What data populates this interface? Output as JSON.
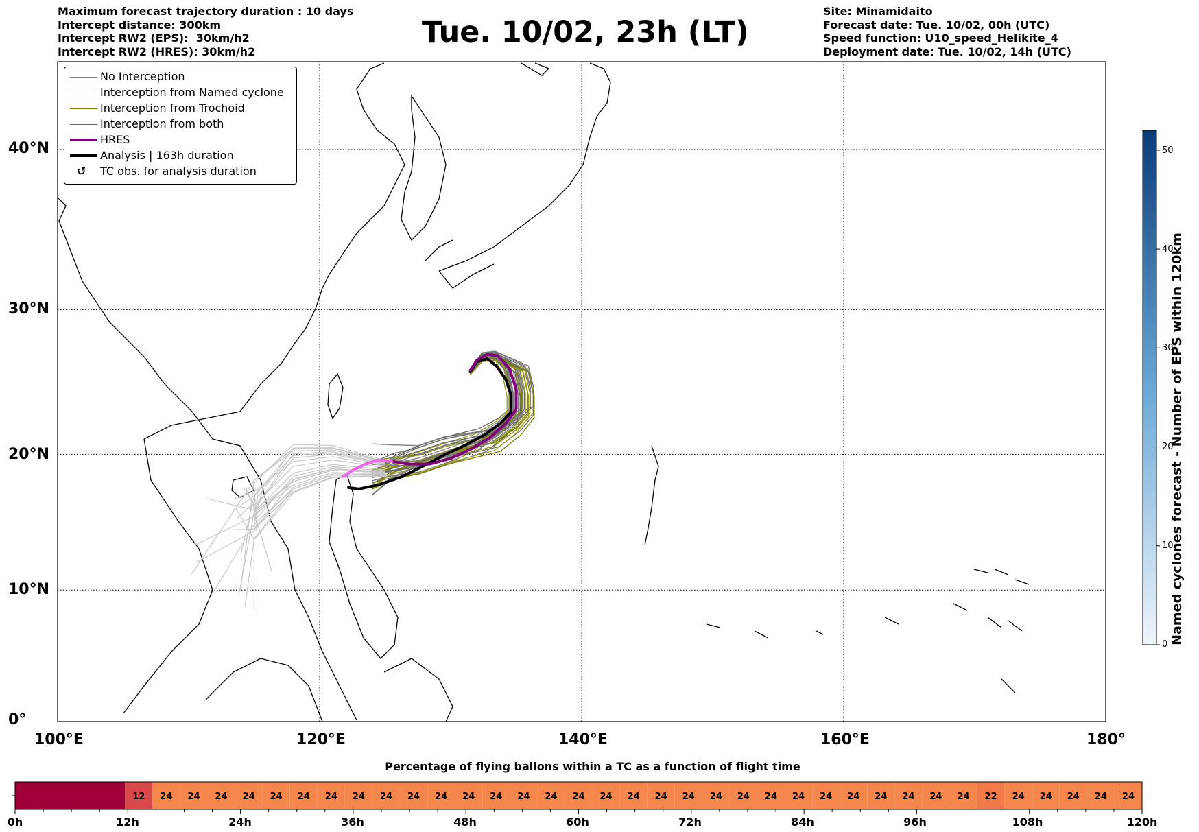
{
  "header": {
    "left_lines": [
      "Maximum forecast trajectory duration : 10 days",
      "Intercept distance: 300km",
      "Intercept RW2 (EPS):  30km/h2",
      "Intercept RW2 (HRES): 30km/h2"
    ],
    "title": "Tue. 10/02, 23h (LT)",
    "right_lines": [
      "Site: Minamidaito",
      "Forecast date: Tue. 10/02, 00h (UTC)",
      "Speed function: U10_speed_Helikite_4",
      "Deployment date: Tue. 10/02, 14h (UTC)"
    ]
  },
  "legend": [
    {
      "label": "No Interception",
      "color": "#808080",
      "width": 1
    },
    {
      "label": "Interception from Named cyclone",
      "color": "#e8501a",
      "width": 1
    },
    {
      "label": "Interception from Trochoid",
      "color": "#808000",
      "width": 1
    },
    {
      "label": "Interception from both",
      "color": "#2e8b2e",
      "width": 1
    },
    {
      "label": "HRES",
      "color": "#800080",
      "width": 4
    },
    {
      "label": "Analysis | 163h duration",
      "color": "#000000",
      "width": 4
    },
    {
      "label": "TC obs. for analysis duration",
      "color": "#000000",
      "icon": "cyclone-symbol-icon"
    }
  ],
  "chart_data": {
    "type": "line",
    "title": "Tue. 10/02, 23h (LT)",
    "x_axis": {
      "range": [
        100,
        180
      ],
      "ticks": [
        100,
        120,
        140,
        160,
        180
      ],
      "tick_labels": [
        "100°E",
        "120°E",
        "140°E",
        "160°E",
        "180°"
      ]
    },
    "y_axis": {
      "range": [
        0,
        45
      ],
      "ticks": [
        0,
        10,
        20,
        30,
        40
      ],
      "tick_labels": [
        "0°",
        "10°N",
        "20°N",
        "30°N",
        "40°N"
      ]
    },
    "grid": "dotted",
    "series": [
      {
        "name": "Analysis | 163h duration",
        "color": "#000000",
        "points": [
          [
            131.5,
            25.8
          ],
          [
            132,
            26.5
          ],
          [
            132.8,
            26.7
          ],
          [
            133.5,
            26.2
          ],
          [
            134.2,
            25.3
          ],
          [
            134.6,
            24.2
          ],
          [
            134.6,
            23.0
          ],
          [
            133.8,
            22.2
          ],
          [
            132.6,
            21.4
          ],
          [
            131.2,
            20.7
          ],
          [
            129.6,
            20.0
          ],
          [
            128.0,
            19.2
          ],
          [
            126.3,
            18.4
          ],
          [
            124.5,
            17.8
          ],
          [
            123.0,
            17.5
          ],
          [
            122.2,
            17.6
          ]
        ]
      },
      {
        "name": "HRES",
        "color": "#800080",
        "points": [
          [
            131.5,
            25.9
          ],
          [
            132,
            26.6
          ],
          [
            132.8,
            27.0
          ],
          [
            133.6,
            26.9
          ],
          [
            134.5,
            26.0
          ],
          [
            135.0,
            24.6
          ],
          [
            135.0,
            23.2
          ],
          [
            134.2,
            22.2
          ],
          [
            133.0,
            21.2
          ],
          [
            131.6,
            20.4
          ],
          [
            130.0,
            19.7
          ],
          [
            128.4,
            19.3
          ],
          [
            126.8,
            19.3
          ],
          [
            125.5,
            19.5
          ]
        ]
      },
      {
        "name": "HRES (continuation)",
        "color": "#ee66ee",
        "points": [
          [
            125.5,
            19.5
          ],
          [
            124.5,
            19.6
          ],
          [
            123.5,
            19.3
          ],
          [
            122.6,
            18.9
          ],
          [
            121.8,
            18.4
          ]
        ]
      }
    ]
  },
  "colorbar": {
    "label": "Named cyclones forecast - Number of EPS within 120km",
    "range": [
      0,
      52
    ],
    "ticks": [
      0,
      10,
      20,
      30,
      40,
      50
    ],
    "color_low": "#e8f0fa",
    "color_high": "#0b3c7a"
  },
  "timeline": {
    "title": "Percentage of flying ballons within a TC as a function of flight time",
    "tick_labels": [
      "0h",
      "12h",
      "24h",
      "36h",
      "48h",
      "60h",
      "72h",
      "84h",
      "96h",
      "108h",
      "120h"
    ],
    "cells": [
      {
        "hours": 12,
        "value": "",
        "color": "#a0003a"
      },
      {
        "hours": 3,
        "value": "12",
        "color": "#d9484a"
      },
      {
        "hours": 3,
        "value": "24",
        "color": "#f5874d"
      },
      {
        "hours": 3,
        "value": "24",
        "color": "#f5874d"
      },
      {
        "hours": 3,
        "value": "24",
        "color": "#f5874d"
      },
      {
        "hours": 3,
        "value": "24",
        "color": "#f5874d"
      },
      {
        "hours": 3,
        "value": "24",
        "color": "#f5874d"
      },
      {
        "hours": 3,
        "value": "24",
        "color": "#f5874d"
      },
      {
        "hours": 3,
        "value": "24",
        "color": "#f5874d"
      },
      {
        "hours": 3,
        "value": "24",
        "color": "#f5874d"
      },
      {
        "hours": 3,
        "value": "24",
        "color": "#f5874d"
      },
      {
        "hours": 3,
        "value": "24",
        "color": "#f5874d"
      },
      {
        "hours": 3,
        "value": "24",
        "color": "#f5874d"
      },
      {
        "hours": 3,
        "value": "24",
        "color": "#f5874d"
      },
      {
        "hours": 3,
        "value": "24",
        "color": "#f5874d"
      },
      {
        "hours": 3,
        "value": "24",
        "color": "#f5874d"
      },
      {
        "hours": 3,
        "value": "24",
        "color": "#f5874d"
      },
      {
        "hours": 3,
        "value": "24",
        "color": "#f5874d"
      },
      {
        "hours": 3,
        "value": "24",
        "color": "#f5874d"
      },
      {
        "hours": 3,
        "value": "24",
        "color": "#f5874d"
      },
      {
        "hours": 3,
        "value": "24",
        "color": "#f5874d"
      },
      {
        "hours": 3,
        "value": "24",
        "color": "#f5874d"
      },
      {
        "hours": 3,
        "value": "24",
        "color": "#f5874d"
      },
      {
        "hours": 3,
        "value": "24",
        "color": "#f5874d"
      },
      {
        "hours": 3,
        "value": "24",
        "color": "#f5874d"
      },
      {
        "hours": 3,
        "value": "24",
        "color": "#f5874d"
      },
      {
        "hours": 3,
        "value": "24",
        "color": "#f5874d"
      },
      {
        "hours": 3,
        "value": "24",
        "color": "#f5874d"
      },
      {
        "hours": 3,
        "value": "24",
        "color": "#f5874d"
      },
      {
        "hours": 3,
        "value": "24",
        "color": "#f5874d"
      },
      {
        "hours": 3,
        "value": "24",
        "color": "#f5874d"
      },
      {
        "hours": 3,
        "value": "24",
        "color": "#f5874d"
      },
      {
        "hours": 3,
        "value": "22",
        "color": "#f07a4a"
      },
      {
        "hours": 3,
        "value": "24",
        "color": "#f5874d"
      },
      {
        "hours": 3,
        "value": "24",
        "color": "#f5874d"
      },
      {
        "hours": 3,
        "value": "24",
        "color": "#f5874d"
      },
      {
        "hours": 3,
        "value": "24",
        "color": "#f5874d"
      },
      {
        "hours": 3,
        "value": "24",
        "color": "#f5874d"
      }
    ]
  }
}
